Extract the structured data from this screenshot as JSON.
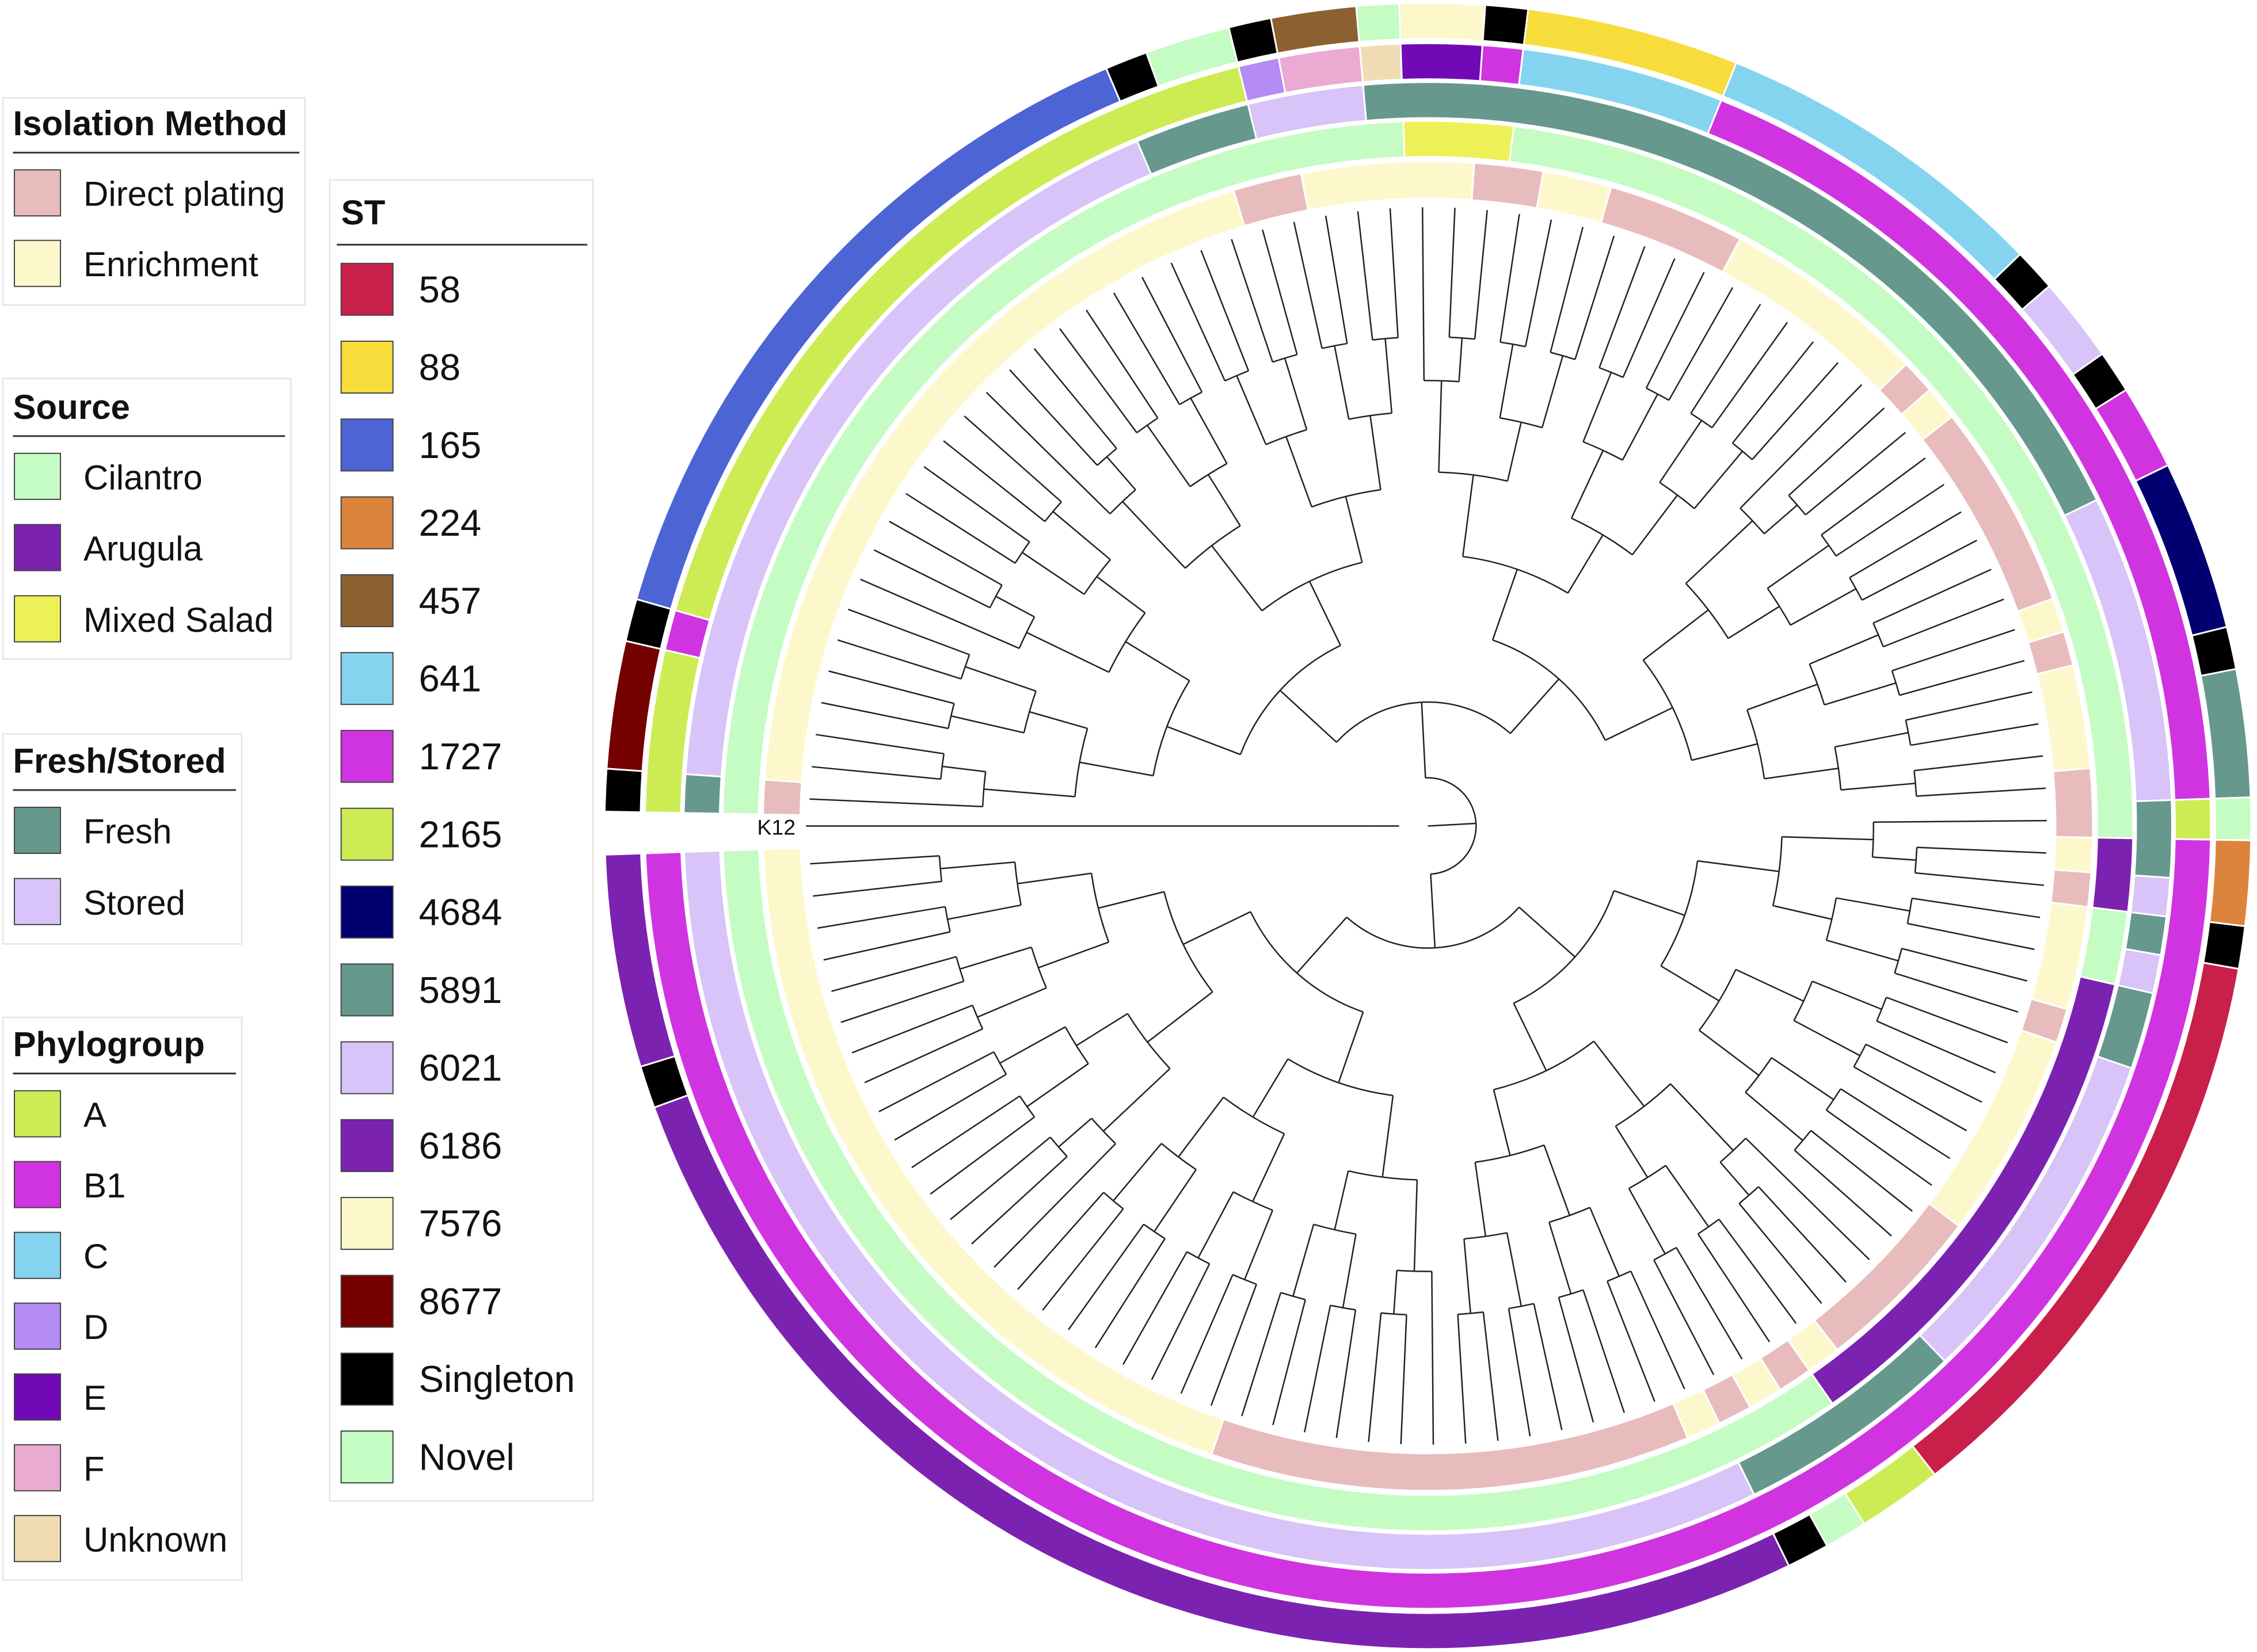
{
  "legends": {
    "isolation": {
      "title": "Isolation Method",
      "items": [
        {
          "key": "DP",
          "label": "Direct plating",
          "color": "#e8bcbc"
        },
        {
          "key": "EN",
          "label": "Enrichment",
          "color": "#fdf8cc"
        }
      ]
    },
    "source": {
      "title": "Source",
      "items": [
        {
          "key": "CI",
          "label": "Cilantro",
          "color": "#c4fcc4"
        },
        {
          "key": "AR",
          "label": "Arugula",
          "color": "#7c22b0"
        },
        {
          "key": "MS",
          "label": "Mixed Salad",
          "color": "#eef058"
        }
      ]
    },
    "fresh": {
      "title": "Fresh/Stored",
      "items": [
        {
          "key": "F",
          "label": "Fresh",
          "color": "#66988e"
        },
        {
          "key": "S",
          "label": "Stored",
          "color": "#d8c4f8"
        }
      ]
    },
    "phylo": {
      "title": "Phylogroup",
      "items": [
        {
          "key": "A",
          "label": "A",
          "color": "#cdec54"
        },
        {
          "key": "B1",
          "label": "B1",
          "color": "#d034e0"
        },
        {
          "key": "C",
          "label": "C",
          "color": "#84d4f0"
        },
        {
          "key": "D",
          "label": "D",
          "color": "#b48cf4"
        },
        {
          "key": "E",
          "label": "E",
          "color": "#7209b7"
        },
        {
          "key": "F",
          "label": "F",
          "color": "#eaaad2"
        },
        {
          "key": "U",
          "label": "Unknown",
          "color": "#f0dcb4"
        }
      ]
    },
    "st": {
      "title": "ST",
      "items": [
        {
          "key": "58",
          "label": "58",
          "color": "#c8204a"
        },
        {
          "key": "88",
          "label": "88",
          "color": "#f8dc3c"
        },
        {
          "key": "165",
          "label": "165",
          "color": "#4c64d4"
        },
        {
          "key": "224",
          "label": "224",
          "color": "#dc843c"
        },
        {
          "key": "457",
          "label": "457",
          "color": "#8c6030"
        },
        {
          "key": "641",
          "label": "641",
          "color": "#84d4f0"
        },
        {
          "key": "1727",
          "label": "1727",
          "color": "#d034e0"
        },
        {
          "key": "2165",
          "label": "2165",
          "color": "#cdec54"
        },
        {
          "key": "4684",
          "label": "4684",
          "color": "#000070"
        },
        {
          "key": "5891",
          "label": "5891",
          "color": "#66988e"
        },
        {
          "key": "6021",
          "label": "6021",
          "color": "#d8c4f8"
        },
        {
          "key": "6186",
          "label": "6186",
          "color": "#7c22b0"
        },
        {
          "key": "7576",
          "label": "7576",
          "color": "#fdf8cc"
        },
        {
          "key": "8677",
          "label": "8677",
          "color": "#740000"
        },
        {
          "key": "SG",
          "label": "Singleton",
          "color": "#000000"
        },
        {
          "key": "NV",
          "label": "Novel",
          "color": "#c4fcc4"
        }
      ]
    }
  },
  "tree": {
    "reference_label": "K12",
    "leaf_count": 119
  },
  "rings": [
    {
      "name": "isolation",
      "legend": "isolation",
      "segments": [
        [
          "DP",
          1
        ],
        [
          "EN",
          23
        ],
        [
          "DP",
          2
        ],
        [
          "EN",
          5
        ],
        [
          "DP",
          2
        ],
        [
          "EN",
          2
        ],
        [
          "DP",
          4
        ],
        [
          "EN",
          6
        ],
        [
          "DP",
          1
        ],
        [
          "EN",
          1
        ],
        [
          "DP",
          6
        ],
        [
          "EN",
          1
        ],
        [
          "DP",
          1
        ],
        [
          "EN",
          3
        ],
        [
          "DP",
          2
        ],
        [
          "EN",
          1
        ],
        [
          "DP",
          1
        ],
        [
          "EN",
          3
        ],
        [
          "DP",
          1
        ],
        [
          "EN",
          6
        ],
        [
          "DP",
          5
        ],
        [
          "EN",
          1
        ],
        [
          "DP",
          1
        ],
        [
          "EN",
          1
        ],
        [
          "DP",
          1
        ],
        [
          "EN",
          1
        ],
        [
          "DP",
          14
        ],
        [
          "EN",
          23
        ]
      ]
    },
    {
      "name": "source",
      "legend": "source",
      "segments": [
        [
          "CI",
          29
        ],
        [
          "MS",
          3
        ],
        [
          "CI",
          28
        ],
        [
          "AR",
          2
        ],
        [
          "CI",
          2
        ],
        [
          "AR",
          14
        ],
        [
          "CI",
          41
        ]
      ]
    },
    {
      "name": "fresh-stored",
      "legend": "fresh",
      "segments": [
        [
          "F",
          1
        ],
        [
          "S",
          21
        ],
        [
          "F",
          3
        ],
        [
          "S",
          3
        ],
        [
          "F",
          23
        ],
        [
          "S",
          8
        ],
        [
          "F",
          2
        ],
        [
          "S",
          1
        ],
        [
          "F",
          1
        ],
        [
          "S",
          1
        ],
        [
          "F",
          2
        ],
        [
          "S",
          9
        ],
        [
          "F",
          6
        ],
        [
          "S",
          38
        ]
      ]
    },
    {
      "name": "phylogroup",
      "legend": "phylo",
      "segments": [
        [
          "A",
          4
        ],
        [
          "B1",
          1
        ],
        [
          "A",
          20
        ],
        [
          "D",
          1
        ],
        [
          "F",
          2
        ],
        [
          "U",
          1
        ],
        [
          "E",
          2
        ],
        [
          "B1",
          1
        ],
        [
          "C",
          5
        ],
        [
          "B1",
          22
        ],
        [
          "A",
          1
        ],
        [
          "B1",
          59
        ]
      ]
    },
    {
      "name": "st",
      "legend": "st",
      "segments": [
        [
          "SG",
          1
        ],
        [
          "8677",
          3
        ],
        [
          "SG",
          1
        ],
        [
          "165",
          17
        ],
        [
          "SG",
          1
        ],
        [
          "NV",
          2
        ],
        [
          "SG",
          1
        ],
        [
          "457",
          2
        ],
        [
          "NV",
          1
        ],
        [
          "7576",
          2
        ],
        [
          "SG",
          1
        ],
        [
          "88",
          5
        ],
        [
          "641",
          8
        ],
        [
          "SG",
          1
        ],
        [
          "6021",
          2
        ],
        [
          "SG",
          1
        ],
        [
          "1727",
          2
        ],
        [
          "4684",
          4
        ],
        [
          "SG",
          1
        ],
        [
          "5891",
          3
        ],
        [
          "NV",
          1
        ],
        [
          "224",
          2
        ],
        [
          "SG",
          1
        ],
        [
          "58",
          14
        ],
        [
          "2165",
          2
        ],
        [
          "NV",
          1
        ],
        [
          "SG",
          1
        ],
        [
          "6186",
          32
        ],
        [
          "SG",
          1
        ],
        [
          "6186",
          5
        ]
      ]
    }
  ]
}
